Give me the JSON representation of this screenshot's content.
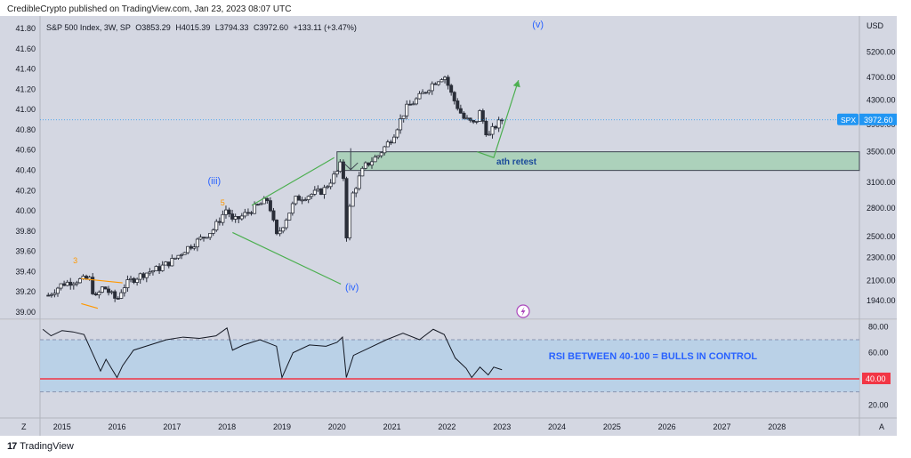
{
  "header": {
    "publisher_line": "CredibleCrypto published on TradingView.com, Jan 23, 2023 08:07 UTC"
  },
  "footer": {
    "brand": "TradingView",
    "logo_glyph": "17"
  },
  "colors": {
    "background": "#d4d7e2",
    "panel_border": "#b2b5be",
    "candle": "#2a2e39",
    "support_zone": "#9fcfae",
    "wedge_line": "#4caf50",
    "rsi_line": "#131722",
    "rsi_band": "#b5d0e8",
    "rsi_40_line": "#f23645",
    "wave_label": "#2962ff",
    "minor_label": "#ff9800",
    "price_tag": "#2196f3"
  },
  "chart_data": {
    "type": "candlestick",
    "symbol_line": {
      "name": "S&P 500 Index, 3W, SP",
      "open_label": "O",
      "open": "3853.29",
      "high_label": "H",
      "high": "4015.39",
      "low_label": "L",
      "low": "3794.33",
      "close_label": "C",
      "close": "3972.60",
      "change": "+133.11 (+3.47%)"
    },
    "currency": "USD",
    "left_axis_ticks": [
      "41.80",
      "41.60",
      "41.40",
      "41.20",
      "41.00",
      "40.80",
      "40.60",
      "40.40",
      "40.20",
      "40.00",
      "39.80",
      "39.60",
      "39.40",
      "39.20",
      "39.00"
    ],
    "right_axis_ticks": [
      {
        "label": "5200.00",
        "value": 5200
      },
      {
        "label": "4700.00",
        "value": 4700
      },
      {
        "label": "4300.00",
        "value": 4300
      },
      {
        "label": "3900.00",
        "value": 3900
      },
      {
        "label": "3500.00",
        "value": 3500
      },
      {
        "label": "3100.00",
        "value": 3100
      },
      {
        "label": "2800.00",
        "value": 2800
      },
      {
        "label": "2500.00",
        "value": 2500
      },
      {
        "label": "2300.00",
        "value": 2300
      },
      {
        "label": "2100.00",
        "value": 2100
      },
      {
        "label": "1940.00",
        "value": 1940
      }
    ],
    "x_ticks": [
      "2015",
      "2016",
      "2017",
      "2018",
      "2019",
      "2020",
      "2021",
      "2022",
      "2023",
      "2024",
      "2025",
      "2026",
      "2027",
      "2028"
    ],
    "x_range": [
      2014.6,
      2029.5
    ],
    "price_range_log": [
      1800,
      6000
    ],
    "last_price": {
      "symbol": "SPX",
      "value": 3972.6,
      "label": "3972.60"
    },
    "series": [
      {
        "x": [
          2014.75,
          2015.0,
          2015.25,
          2015.5,
          2015.6,
          2015.75,
          2016.0,
          2016.1,
          2016.25,
          2016.5,
          2016.75,
          2017.0,
          2017.25,
          2017.5,
          2017.75,
          2018.0,
          2018.1,
          2018.25,
          2018.5,
          2018.75,
          2018.9,
          2019.0,
          2019.25,
          2019.5,
          2019.75,
          2020.0,
          2020.1,
          2020.17,
          2020.25,
          2020.4,
          2020.5,
          2020.75,
          2021.0,
          2021.25,
          2021.5,
          2021.75,
          2021.95,
          2022.1,
          2022.3,
          2022.5,
          2022.6,
          2022.75,
          2022.85,
          2023.0
        ],
        "close": [
          1980,
          2070,
          2100,
          2110,
          1950,
          2050,
          1940,
          2040,
          2100,
          2160,
          2200,
          2270,
          2380,
          2470,
          2570,
          2800,
          2650,
          2700,
          2800,
          2900,
          2500,
          2600,
          2900,
          2950,
          3000,
          3230,
          3380,
          2500,
          2900,
          3150,
          3300,
          3450,
          3700,
          4150,
          4350,
          4600,
          4750,
          4350,
          4000,
          3900,
          4100,
          3700,
          3850,
          3972
        ]
      }
    ],
    "annotations": {
      "wave_v": "(v)",
      "wave_iii": "(iii)",
      "wave_iv": "(iv)",
      "minor_3": "3",
      "minor_5": "5",
      "zone_label": "ath retest",
      "rsi_note": "RSI BETWEEN 40-100 = BULLS IN CONTROL"
    },
    "support_zone": [
      3250,
      3500
    ],
    "rsi": {
      "ticks": [
        {
          "label": "80.00",
          "value": 80
        },
        {
          "label": "60.00",
          "value": 60
        },
        {
          "label": "20.00",
          "value": 20
        }
      ],
      "level_tag": {
        "label": "40.00",
        "value": 40
      },
      "band": [
        30,
        70
      ],
      "range": [
        10,
        85
      ],
      "x": [
        2014.65,
        2014.8,
        2015.0,
        2015.2,
        2015.4,
        2015.55,
        2015.7,
        2015.8,
        2016.0,
        2016.1,
        2016.3,
        2016.6,
        2016.9,
        2017.2,
        2017.5,
        2017.8,
        2018.0,
        2018.1,
        2018.3,
        2018.6,
        2018.9,
        2019.0,
        2019.2,
        2019.5,
        2019.8,
        2020.0,
        2020.1,
        2020.17,
        2020.3,
        2020.6,
        2020.9,
        2021.2,
        2021.5,
        2021.75,
        2021.95,
        2022.15,
        2022.35,
        2022.45,
        2022.6,
        2022.75,
        2022.85,
        2023.0
      ],
      "value": [
        78,
        73,
        77,
        76,
        74,
        60,
        46,
        55,
        41,
        50,
        62,
        66,
        70,
        72,
        71,
        73,
        79,
        62,
        66,
        70,
        65,
        41,
        60,
        66,
        65,
        68,
        72,
        41,
        58,
        64,
        70,
        75,
        70,
        78,
        74,
        56,
        48,
        41,
        49,
        43,
        49,
        47
      ]
    }
  }
}
